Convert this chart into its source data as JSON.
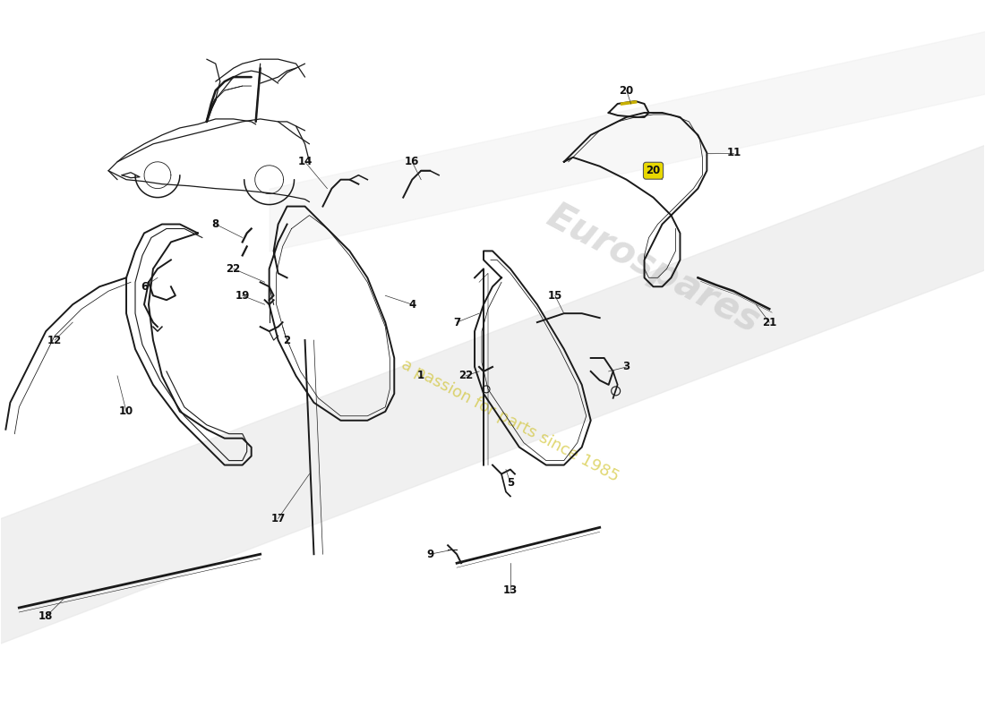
{
  "background_color": "#ffffff",
  "line_color": "#1a1a1a",
  "watermark_color": "#d0d0d0",
  "watermark_text_color": "#c8c8c8",
  "label_color": "#111111",
  "yellow_label_bg": "#e8d800",
  "swoosh_color": "#e0e0e0",
  "lw_main": 1.4,
  "lw_thin": 0.8,
  "lw_thick": 2.0,
  "label_fontsize": 8.5
}
